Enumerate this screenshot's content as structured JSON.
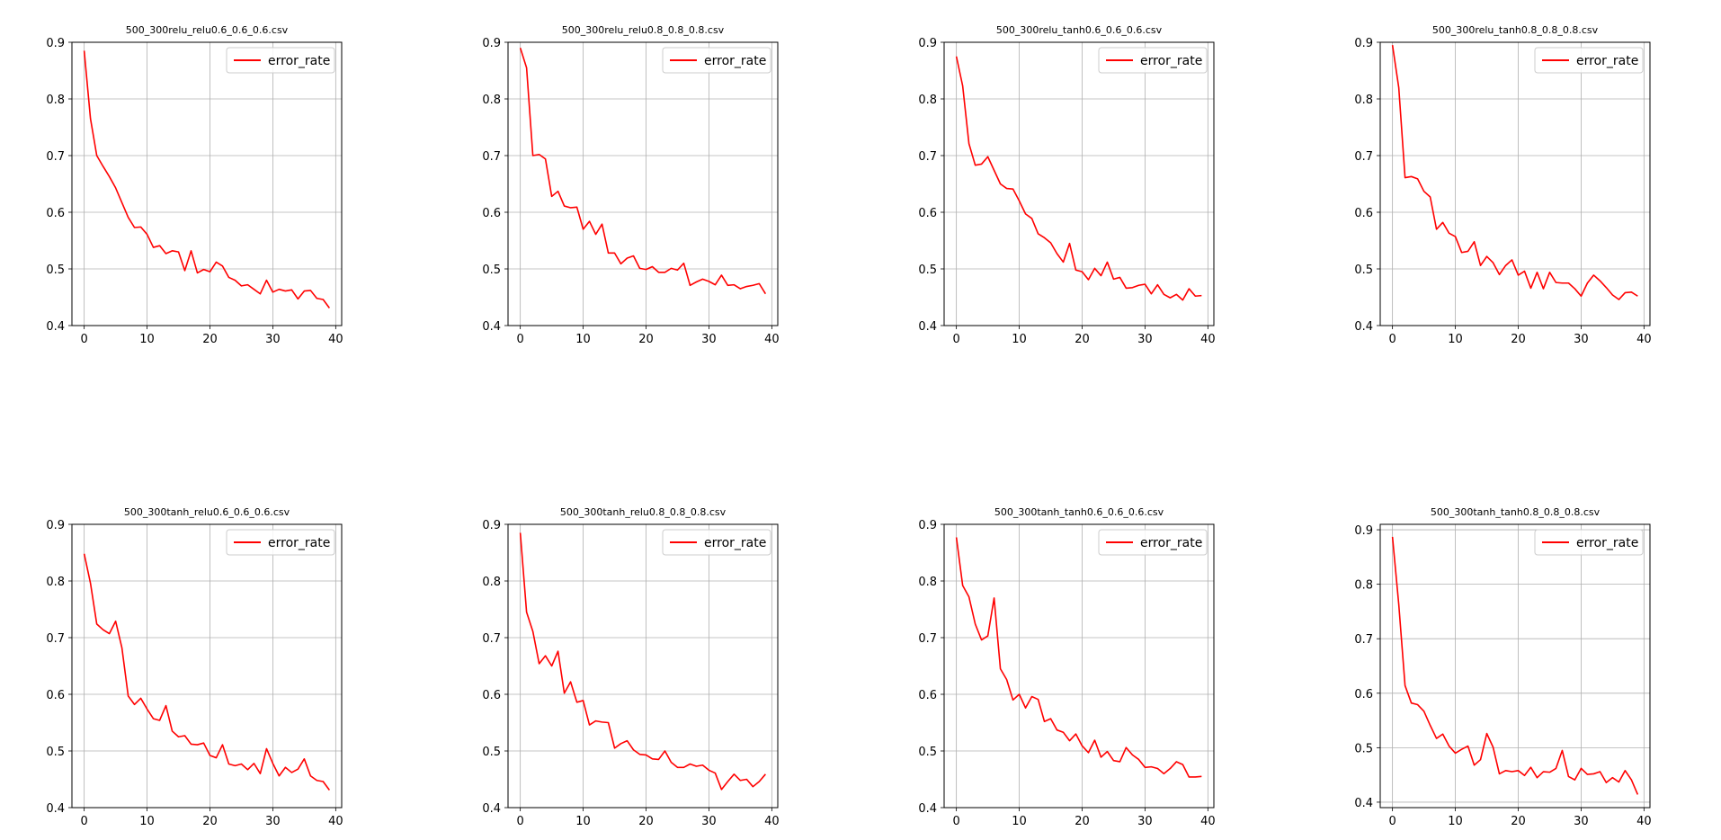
{
  "figure": {
    "background": "#ffffff",
    "line_color": "#ff0000",
    "grid_color": "#b0b0b0"
  },
  "chart_data": [
    {
      "type": "line",
      "title": "500_300relu_relu0.6_0.6_0.6.csv",
      "xlabel": "",
      "ylabel": "",
      "xlim": [
        -1.95,
        40.95
      ],
      "ylim": [
        0.4,
        0.9
      ],
      "xticks": [
        "0",
        "10",
        "20",
        "30",
        "40"
      ],
      "yticks": [
        "0.4",
        "0.5",
        "0.6",
        "0.7",
        "0.8",
        "0.9"
      ],
      "grid": true,
      "legend": "top-right",
      "series": [
        {
          "name": "error_rate",
          "color": "#ff0000",
          "x": [
            0,
            1,
            2,
            3,
            4,
            5,
            6,
            7,
            8,
            9,
            10,
            11,
            12,
            13,
            14,
            15,
            16,
            17,
            18,
            19,
            20,
            21,
            22,
            23,
            24,
            25,
            26,
            27,
            28,
            29,
            30,
            31,
            32,
            33,
            34,
            35,
            36,
            37,
            38,
            39
          ],
          "values": [
            0.885,
            0.765,
            0.7,
            0.681,
            0.663,
            0.643,
            0.617,
            0.591,
            0.573,
            0.574,
            0.561,
            0.538,
            0.541,
            0.527,
            0.532,
            0.53,
            0.497,
            0.532,
            0.493,
            0.499,
            0.495,
            0.512,
            0.505,
            0.485,
            0.48,
            0.47,
            0.472,
            0.464,
            0.456,
            0.48,
            0.459,
            0.464,
            0.461,
            0.463,
            0.447,
            0.461,
            0.462,
            0.448,
            0.446,
            0.431
          ]
        }
      ]
    },
    {
      "type": "line",
      "title": "500_300relu_relu0.8_0.8_0.8.csv",
      "xlabel": "",
      "ylabel": "",
      "xlim": [
        -1.95,
        40.95
      ],
      "ylim": [
        0.4,
        0.9
      ],
      "xticks": [
        "0",
        "10",
        "20",
        "30",
        "40"
      ],
      "yticks": [
        "0.4",
        "0.5",
        "0.6",
        "0.7",
        "0.8",
        "0.9"
      ],
      "grid": true,
      "legend": "top-right",
      "series": [
        {
          "name": "error_rate",
          "color": "#ff0000",
          "x": [
            0,
            1,
            2,
            3,
            4,
            5,
            6,
            7,
            8,
            9,
            10,
            11,
            12,
            13,
            14,
            15,
            16,
            17,
            18,
            19,
            20,
            21,
            22,
            23,
            24,
            25,
            26,
            27,
            28,
            29,
            30,
            31,
            32,
            33,
            34,
            35,
            36,
            37,
            38,
            39
          ],
          "values": [
            0.89,
            0.855,
            0.7,
            0.702,
            0.694,
            0.628,
            0.637,
            0.611,
            0.608,
            0.609,
            0.57,
            0.584,
            0.561,
            0.579,
            0.528,
            0.528,
            0.509,
            0.519,
            0.523,
            0.501,
            0.499,
            0.504,
            0.494,
            0.494,
            0.501,
            0.498,
            0.51,
            0.471,
            0.477,
            0.482,
            0.478,
            0.472,
            0.489,
            0.471,
            0.472,
            0.465,
            0.469,
            0.471,
            0.474,
            0.456
          ]
        }
      ]
    },
    {
      "type": "line",
      "title": "500_300relu_tanh0.6_0.6_0.6.csv",
      "xlabel": "",
      "ylabel": "",
      "xlim": [
        -1.95,
        40.95
      ],
      "ylim": [
        0.4,
        0.9
      ],
      "xticks": [
        "0",
        "10",
        "20",
        "30",
        "40"
      ],
      "yticks": [
        "0.4",
        "0.5",
        "0.6",
        "0.7",
        "0.8",
        "0.9"
      ],
      "grid": true,
      "legend": "top-right",
      "series": [
        {
          "name": "error_rate",
          "color": "#ff0000",
          "x": [
            0,
            1,
            2,
            3,
            4,
            5,
            6,
            7,
            8,
            9,
            10,
            11,
            12,
            13,
            14,
            15,
            16,
            17,
            18,
            19,
            20,
            21,
            22,
            23,
            24,
            25,
            26,
            27,
            28,
            29,
            30,
            31,
            32,
            33,
            34,
            35,
            36,
            37,
            38,
            39
          ],
          "values": [
            0.875,
            0.823,
            0.721,
            0.683,
            0.685,
            0.698,
            0.674,
            0.65,
            0.642,
            0.641,
            0.62,
            0.597,
            0.589,
            0.562,
            0.555,
            0.546,
            0.527,
            0.512,
            0.545,
            0.498,
            0.495,
            0.481,
            0.501,
            0.488,
            0.512,
            0.482,
            0.485,
            0.466,
            0.467,
            0.471,
            0.473,
            0.456,
            0.472,
            0.455,
            0.449,
            0.455,
            0.445,
            0.465,
            0.452,
            0.453
          ]
        }
      ]
    },
    {
      "type": "line",
      "title": "500_300relu_tanh0.8_0.8_0.8.csv",
      "xlabel": "",
      "ylabel": "",
      "xlim": [
        -1.95,
        40.95
      ],
      "ylim": [
        0.4,
        0.9
      ],
      "xticks": [
        "0",
        "10",
        "20",
        "30",
        "40"
      ],
      "yticks": [
        "0.4",
        "0.5",
        "0.6",
        "0.7",
        "0.8",
        "0.9"
      ],
      "grid": true,
      "legend": "top-right",
      "series": [
        {
          "name": "error_rate",
          "color": "#ff0000",
          "x": [
            0,
            1,
            2,
            3,
            4,
            5,
            6,
            7,
            8,
            9,
            10,
            11,
            12,
            13,
            14,
            15,
            16,
            17,
            18,
            19,
            20,
            21,
            22,
            23,
            24,
            25,
            26,
            27,
            28,
            29,
            30,
            31,
            32,
            33,
            34,
            35,
            36,
            37,
            38,
            39
          ],
          "values": [
            0.895,
            0.82,
            0.661,
            0.663,
            0.659,
            0.637,
            0.627,
            0.57,
            0.582,
            0.563,
            0.557,
            0.529,
            0.531,
            0.548,
            0.506,
            0.522,
            0.511,
            0.49,
            0.506,
            0.516,
            0.489,
            0.496,
            0.466,
            0.494,
            0.465,
            0.494,
            0.476,
            0.475,
            0.475,
            0.465,
            0.452,
            0.475,
            0.489,
            0.479,
            0.467,
            0.454,
            0.446,
            0.458,
            0.459,
            0.452
          ]
        }
      ]
    },
    {
      "type": "line",
      "title": "500_300tanh_relu0.6_0.6_0.6.csv",
      "xlabel": "",
      "ylabel": "",
      "xlim": [
        -1.95,
        40.95
      ],
      "ylim": [
        0.4,
        0.9
      ],
      "xticks": [
        "0",
        "10",
        "20",
        "30",
        "40"
      ],
      "yticks": [
        "0.4",
        "0.5",
        "0.6",
        "0.7",
        "0.8",
        "0.9"
      ],
      "grid": true,
      "legend": "top-right",
      "series": [
        {
          "name": "error_rate",
          "color": "#ff0000",
          "x": [
            0,
            1,
            2,
            3,
            4,
            5,
            6,
            7,
            8,
            9,
            10,
            11,
            12,
            13,
            14,
            15,
            16,
            17,
            18,
            19,
            20,
            21,
            22,
            23,
            24,
            25,
            26,
            27,
            28,
            29,
            30,
            31,
            32,
            33,
            34,
            35,
            36,
            37,
            38,
            39
          ],
          "values": [
            0.848,
            0.796,
            0.724,
            0.714,
            0.707,
            0.729,
            0.682,
            0.597,
            0.582,
            0.593,
            0.574,
            0.557,
            0.554,
            0.58,
            0.535,
            0.525,
            0.527,
            0.512,
            0.511,
            0.514,
            0.492,
            0.488,
            0.511,
            0.477,
            0.474,
            0.477,
            0.467,
            0.478,
            0.46,
            0.504,
            0.478,
            0.456,
            0.471,
            0.462,
            0.468,
            0.486,
            0.456,
            0.448,
            0.446,
            0.431
          ]
        }
      ]
    },
    {
      "type": "line",
      "title": "500_300tanh_relu0.8_0.8_0.8.csv",
      "xlabel": "",
      "ylabel": "",
      "xlim": [
        -1.95,
        40.95
      ],
      "ylim": [
        0.4,
        0.9
      ],
      "xticks": [
        "0",
        "10",
        "20",
        "30",
        "40"
      ],
      "yticks": [
        "0.4",
        "0.5",
        "0.6",
        "0.7",
        "0.8",
        "0.9"
      ],
      "grid": true,
      "legend": "top-right",
      "series": [
        {
          "name": "error_rate",
          "color": "#ff0000",
          "x": [
            0,
            1,
            2,
            3,
            4,
            5,
            6,
            7,
            8,
            9,
            10,
            11,
            12,
            13,
            14,
            15,
            16,
            17,
            18,
            19,
            20,
            21,
            22,
            23,
            24,
            25,
            26,
            27,
            28,
            29,
            30,
            31,
            32,
            33,
            34,
            35,
            36,
            37,
            38,
            39
          ],
          "values": [
            0.885,
            0.745,
            0.711,
            0.654,
            0.668,
            0.65,
            0.676,
            0.602,
            0.622,
            0.586,
            0.589,
            0.546,
            0.553,
            0.551,
            0.55,
            0.505,
            0.513,
            0.518,
            0.502,
            0.494,
            0.493,
            0.486,
            0.485,
            0.5,
            0.48,
            0.471,
            0.471,
            0.477,
            0.473,
            0.475,
            0.466,
            0.461,
            0.432,
            0.446,
            0.459,
            0.448,
            0.45,
            0.437,
            0.446,
            0.459
          ]
        }
      ]
    },
    {
      "type": "line",
      "title": "500_300tanh_tanh0.6_0.6_0.6.csv",
      "xlabel": "",
      "ylabel": "",
      "xlim": [
        -1.95,
        40.95
      ],
      "ylim": [
        0.4,
        0.9
      ],
      "xticks": [
        "0",
        "10",
        "20",
        "30",
        "40"
      ],
      "yticks": [
        "0.4",
        "0.5",
        "0.6",
        "0.7",
        "0.8",
        "0.9"
      ],
      "grid": true,
      "legend": "top-right",
      "series": [
        {
          "name": "error_rate",
          "color": "#ff0000",
          "x": [
            0,
            1,
            2,
            3,
            4,
            5,
            6,
            7,
            8,
            9,
            10,
            11,
            12,
            13,
            14,
            15,
            16,
            17,
            18,
            19,
            20,
            21,
            22,
            23,
            24,
            25,
            26,
            27,
            28,
            29,
            30,
            31,
            32,
            33,
            34,
            35,
            36,
            37,
            38,
            39
          ],
          "values": [
            0.877,
            0.792,
            0.772,
            0.724,
            0.696,
            0.703,
            0.77,
            0.645,
            0.626,
            0.59,
            0.6,
            0.576,
            0.596,
            0.591,
            0.552,
            0.557,
            0.537,
            0.533,
            0.518,
            0.53,
            0.509,
            0.497,
            0.519,
            0.489,
            0.499,
            0.483,
            0.481,
            0.506,
            0.493,
            0.485,
            0.471,
            0.472,
            0.469,
            0.46,
            0.469,
            0.481,
            0.476,
            0.454,
            0.454,
            0.455
          ]
        }
      ]
    },
    {
      "type": "line",
      "title": "500_300tanh_tanh0.8_0.8_0.8.csv",
      "xlabel": "",
      "ylabel": "",
      "xlim": [
        -1.95,
        40.95
      ],
      "ylim": [
        0.39,
        0.91
      ],
      "xticks": [
        "0",
        "10",
        "20",
        "30",
        "40"
      ],
      "yticks": [
        "0.4",
        "0.5",
        "0.6",
        "0.7",
        "0.8",
        "0.9"
      ],
      "grid": true,
      "legend": "top-right",
      "series": [
        {
          "name": "error_rate",
          "color": "#ff0000",
          "x": [
            0,
            1,
            2,
            3,
            4,
            5,
            6,
            7,
            8,
            9,
            10,
            11,
            12,
            13,
            14,
            15,
            16,
            17,
            18,
            19,
            20,
            21,
            22,
            23,
            24,
            25,
            26,
            27,
            28,
            29,
            30,
            31,
            32,
            33,
            34,
            35,
            36,
            37,
            38,
            39
          ],
          "values": [
            0.887,
            0.763,
            0.614,
            0.582,
            0.579,
            0.567,
            0.541,
            0.517,
            0.525,
            0.503,
            0.49,
            0.497,
            0.503,
            0.468,
            0.478,
            0.526,
            0.501,
            0.452,
            0.458,
            0.456,
            0.458,
            0.449,
            0.464,
            0.445,
            0.456,
            0.455,
            0.462,
            0.495,
            0.447,
            0.441,
            0.462,
            0.451,
            0.452,
            0.456,
            0.436,
            0.445,
            0.437,
            0.458,
            0.441,
            0.414
          ]
        }
      ]
    }
  ]
}
